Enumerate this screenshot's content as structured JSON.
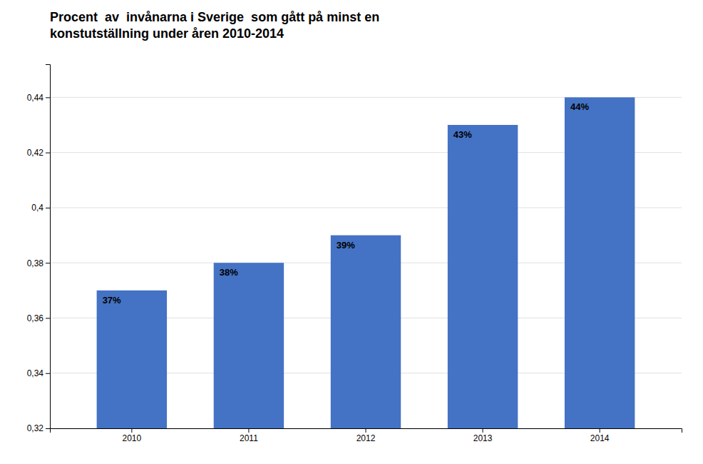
{
  "chart_data": {
    "type": "bar",
    "title": "Procent  av  invånarna i Sverige  som gått på minst en\nkonstutställning under åren 2010-2014",
    "categories": [
      "2010",
      "2011",
      "2012",
      "2013",
      "2014"
    ],
    "values": [
      0.37,
      0.38,
      0.39,
      0.43,
      0.44
    ],
    "value_labels": [
      "37%",
      "38%",
      "39%",
      "43%",
      "44%"
    ],
    "data_labels": true,
    "color": "#4472C4",
    "ylim": [
      0.32,
      0.452
    ],
    "yticks": [
      {
        "value": 0.32,
        "label": "0,32"
      },
      {
        "value": 0.34,
        "label": "0,34"
      },
      {
        "value": 0.36,
        "label": "0,36"
      },
      {
        "value": 0.38,
        "label": "0,38"
      },
      {
        "value": 0.4,
        "label": "0,4"
      },
      {
        "value": 0.42,
        "label": "0,42"
      },
      {
        "value": 0.44,
        "label": "0,44"
      }
    ],
    "grid": true
  }
}
